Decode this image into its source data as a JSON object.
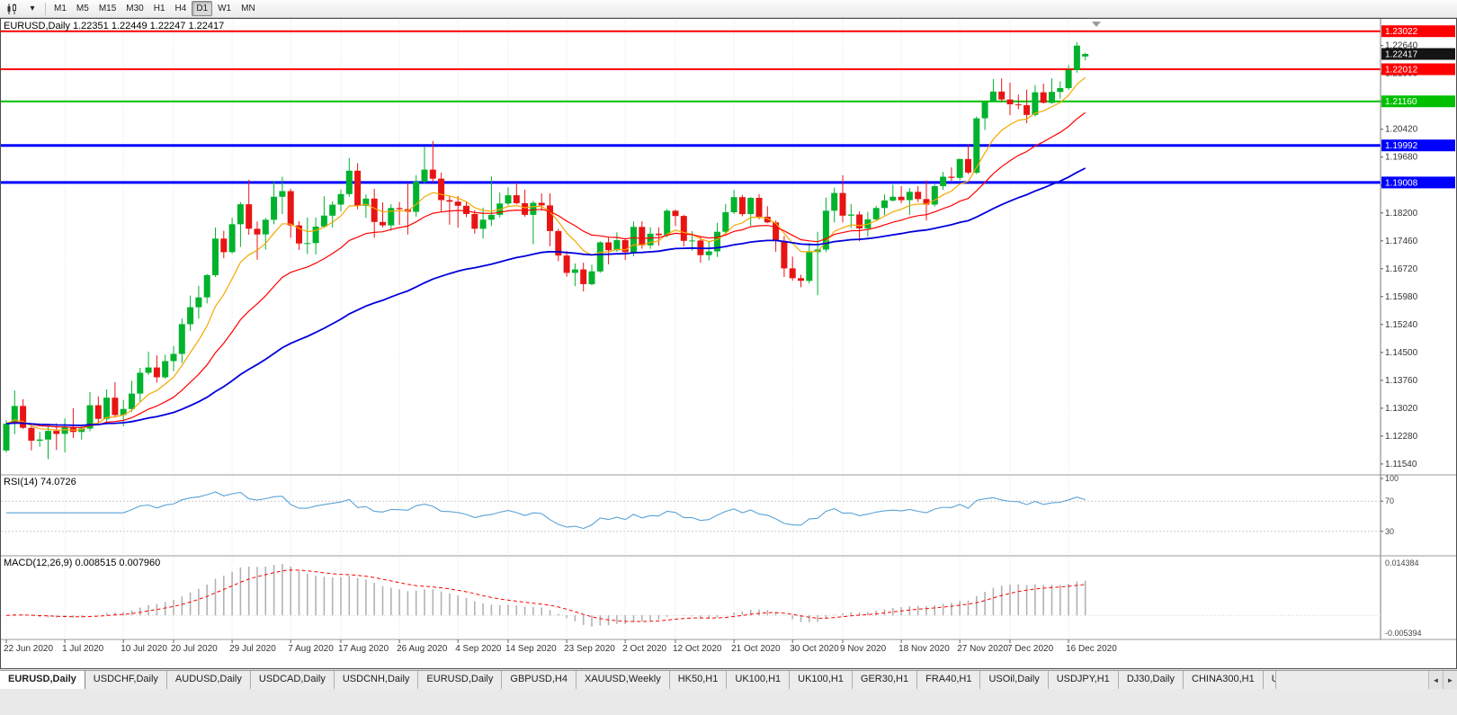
{
  "toolbar": {
    "chart_type_icon": "candlestick-chart-icon",
    "dropdown_icon": "caret-down-icon",
    "timeframes": [
      "M1",
      "M5",
      "M15",
      "M30",
      "H1",
      "H4",
      "D1",
      "W1",
      "MN"
    ],
    "active_timeframe": "D1"
  },
  "chart": {
    "title": "EURUSD,Daily 1.22351 1.22449 1.22247 1.22417",
    "symbol": "EURUSD",
    "period": "Daily"
  },
  "chart_data": {
    "type": "candlestick",
    "symbol": "EURUSD",
    "timeframe": "Daily",
    "ohlc_current": {
      "open": 1.22351,
      "high": 1.22449,
      "low": 1.22247,
      "close": 1.22417
    },
    "price_range": [
      1.113,
      1.233
    ],
    "y_axis_labels": [
      "1.22640",
      "1.21900",
      "1.21160",
      "1.20420",
      "1.19680",
      "1.18940",
      "1.18200",
      "1.17460",
      "1.16720",
      "1.15980",
      "1.15240",
      "1.14500",
      "1.13760",
      "1.13020",
      "1.12280",
      "1.11540"
    ],
    "x_tick_labels": [
      "22 Jun 2020",
      "1 Jul 2020",
      "10 Jul 2020",
      "20 Jul 2020",
      "29 Jul 2020",
      "7 Aug 2020",
      "17 Aug 2020",
      "26 Aug 2020",
      "4 Sep 2020",
      "14 Sep 2020",
      "23 Sep 2020",
      "2 Oct 2020",
      "12 Oct 2020",
      "21 Oct 2020",
      "30 Oct 2020",
      "9 Nov 2020",
      "18 Nov 2020",
      "27 Nov 2020",
      "7 Dec 2020",
      "16 Dec 2020"
    ],
    "x_tick_indices": [
      0,
      7,
      14,
      20,
      27,
      34,
      40,
      47,
      54,
      60,
      67,
      74,
      80,
      87,
      94,
      100,
      107,
      114,
      120,
      127
    ],
    "colors": {
      "background": "#ffffff",
      "grid": "#e3e3e3",
      "bull": "#00b22d",
      "bear": "#e81414"
    },
    "candles": [
      [
        1.119,
        1.127,
        1.1185,
        1.1261
      ],
      [
        1.1261,
        1.1349,
        1.1233,
        1.1308
      ],
      [
        1.1308,
        1.1326,
        1.1247,
        1.125
      ],
      [
        1.125,
        1.1261,
        1.119,
        1.1216
      ],
      [
        1.1216,
        1.1239,
        1.12,
        1.1219
      ],
      [
        1.1219,
        1.1261,
        1.1167,
        1.1242
      ],
      [
        1.1242,
        1.1262,
        1.1191,
        1.1234
      ],
      [
        1.1234,
        1.1275,
        1.1185,
        1.1252
      ],
      [
        1.1252,
        1.1302,
        1.1223,
        1.1239
      ],
      [
        1.1239,
        1.1254,
        1.1219,
        1.1248
      ],
      [
        1.1248,
        1.1345,
        1.1241,
        1.131
      ],
      [
        1.131,
        1.1333,
        1.1259,
        1.1274
      ],
      [
        1.1274,
        1.1352,
        1.1266,
        1.133
      ],
      [
        1.133,
        1.1371,
        1.1277,
        1.1284
      ],
      [
        1.1284,
        1.1324,
        1.1254,
        1.13
      ],
      [
        1.13,
        1.1375,
        1.1292,
        1.1341
      ],
      [
        1.1341,
        1.1409,
        1.132,
        1.1396
      ],
      [
        1.1396,
        1.1452,
        1.139,
        1.141
      ],
      [
        1.141,
        1.1442,
        1.137,
        1.1384
      ],
      [
        1.1384,
        1.1444,
        1.138,
        1.1427
      ],
      [
        1.1427,
        1.1467,
        1.14,
        1.1446
      ],
      [
        1.1446,
        1.154,
        1.1422,
        1.1525
      ],
      [
        1.1525,
        1.1601,
        1.1507,
        1.157
      ],
      [
        1.157,
        1.1627,
        1.154,
        1.1596
      ],
      [
        1.1596,
        1.1658,
        1.158,
        1.1655
      ],
      [
        1.1655,
        1.1781,
        1.165,
        1.1752
      ],
      [
        1.1752,
        1.1773,
        1.17,
        1.1716
      ],
      [
        1.1716,
        1.1807,
        1.1712,
        1.179
      ],
      [
        1.179,
        1.1849,
        1.173,
        1.1843
      ],
      [
        1.1843,
        1.1908,
        1.1762,
        1.1778
      ],
      [
        1.1778,
        1.1797,
        1.1696,
        1.1763
      ],
      [
        1.1763,
        1.1807,
        1.1723,
        1.1802
      ],
      [
        1.1802,
        1.1905,
        1.179,
        1.1863
      ],
      [
        1.1863,
        1.1916,
        1.1817,
        1.1878
      ],
      [
        1.1878,
        1.1884,
        1.1754,
        1.1787
      ],
      [
        1.1787,
        1.1798,
        1.1722,
        1.1739
      ],
      [
        1.1739,
        1.1808,
        1.1711,
        1.174
      ],
      [
        1.174,
        1.1808,
        1.171,
        1.1784
      ],
      [
        1.1784,
        1.1864,
        1.178,
        1.1813
      ],
      [
        1.1813,
        1.1851,
        1.1781,
        1.1842
      ],
      [
        1.1842,
        1.1882,
        1.1824,
        1.187
      ],
      [
        1.187,
        1.1966,
        1.1863,
        1.1932
      ],
      [
        1.1932,
        1.1952,
        1.183,
        1.1839
      ],
      [
        1.1839,
        1.1869,
        1.1807,
        1.1858
      ],
      [
        1.1858,
        1.1884,
        1.1754,
        1.1796
      ],
      [
        1.1796,
        1.1848,
        1.1782,
        1.1787
      ],
      [
        1.1787,
        1.1843,
        1.1773,
        1.1833
      ],
      [
        1.1833,
        1.1849,
        1.1788,
        1.183
      ],
      [
        1.183,
        1.1899,
        1.1763,
        1.1823
      ],
      [
        1.1823,
        1.192,
        1.181,
        1.1903
      ],
      [
        1.1903,
        1.1997,
        1.1898,
        1.1935
      ],
      [
        1.1935,
        1.2011,
        1.19,
        1.1911
      ],
      [
        1.1911,
        1.1927,
        1.1822,
        1.1854
      ],
      [
        1.1854,
        1.1865,
        1.1789,
        1.185
      ],
      [
        1.185,
        1.1865,
        1.1781,
        1.1839
      ],
      [
        1.1839,
        1.1849,
        1.1809,
        1.1817
      ],
      [
        1.1817,
        1.1827,
        1.1765,
        1.1778
      ],
      [
        1.1778,
        1.1834,
        1.1752,
        1.1802
      ],
      [
        1.1802,
        1.1917,
        1.1785,
        1.1815
      ],
      [
        1.1815,
        1.1874,
        1.1808,
        1.1845
      ],
      [
        1.1845,
        1.1888,
        1.184,
        1.1867
      ],
      [
        1.1867,
        1.19,
        1.1843,
        1.1846
      ],
      [
        1.1846,
        1.1882,
        1.181,
        1.1815
      ],
      [
        1.1815,
        1.1852,
        1.1737,
        1.1847
      ],
      [
        1.1847,
        1.1872,
        1.1826,
        1.184
      ],
      [
        1.184,
        1.1872,
        1.1732,
        1.1772
      ],
      [
        1.1772,
        1.1778,
        1.1692,
        1.1707
      ],
      [
        1.1707,
        1.1719,
        1.1651,
        1.1661
      ],
      [
        1.1661,
        1.1686,
        1.1626,
        1.167
      ],
      [
        1.167,
        1.1688,
        1.1612,
        1.1631
      ],
      [
        1.1631,
        1.1683,
        1.1628,
        1.1665
      ],
      [
        1.1665,
        1.1745,
        1.1661,
        1.1742
      ],
      [
        1.1742,
        1.1755,
        1.1684,
        1.1721
      ],
      [
        1.1721,
        1.1769,
        1.1717,
        1.1748
      ],
      [
        1.1748,
        1.175,
        1.1695,
        1.1716
      ],
      [
        1.1716,
        1.1797,
        1.1705,
        1.1783
      ],
      [
        1.1783,
        1.1798,
        1.1725,
        1.1734
      ],
      [
        1.1734,
        1.1782,
        1.1725,
        1.1765
      ],
      [
        1.1765,
        1.1782,
        1.1733,
        1.1761
      ],
      [
        1.1761,
        1.1831,
        1.1755,
        1.1826
      ],
      [
        1.1826,
        1.1829,
        1.1785,
        1.1812
      ],
      [
        1.1812,
        1.1815,
        1.1731,
        1.1746
      ],
      [
        1.1746,
        1.1772,
        1.172,
        1.1747
      ],
      [
        1.1747,
        1.1758,
        1.1688,
        1.1708
      ],
      [
        1.1708,
        1.1746,
        1.1694,
        1.1718
      ],
      [
        1.1718,
        1.1794,
        1.1703,
        1.177
      ],
      [
        1.177,
        1.1844,
        1.176,
        1.1822
      ],
      [
        1.1822,
        1.1881,
        1.1817,
        1.1862
      ],
      [
        1.1862,
        1.1868,
        1.1811,
        1.1817
      ],
      [
        1.1817,
        1.1863,
        1.1786,
        1.186
      ],
      [
        1.186,
        1.187,
        1.1803,
        1.181
      ],
      [
        1.181,
        1.1838,
        1.1793,
        1.1795
      ],
      [
        1.1795,
        1.18,
        1.1717,
        1.1746
      ],
      [
        1.1746,
        1.1759,
        1.165,
        1.1673
      ],
      [
        1.1673,
        1.1704,
        1.164,
        1.1647
      ],
      [
        1.1647,
        1.1656,
        1.1623,
        1.164
      ],
      [
        1.164,
        1.174,
        1.1633,
        1.1716
      ],
      [
        1.1716,
        1.177,
        1.1602,
        1.1723
      ],
      [
        1.1723,
        1.1861,
        1.1716,
        1.1826
      ],
      [
        1.1826,
        1.1887,
        1.1795,
        1.1873
      ],
      [
        1.1873,
        1.192,
        1.1795,
        1.1813
      ],
      [
        1.1813,
        1.1843,
        1.178,
        1.1816
      ],
      [
        1.1816,
        1.1824,
        1.1745,
        1.1779
      ],
      [
        1.1779,
        1.1823,
        1.1757,
        1.1803
      ],
      [
        1.1803,
        1.1839,
        1.1799,
        1.1833
      ],
      [
        1.1833,
        1.1869,
        1.1814,
        1.1853
      ],
      [
        1.1853,
        1.1895,
        1.185,
        1.1863
      ],
      [
        1.1863,
        1.1891,
        1.1846,
        1.1854
      ],
      [
        1.1854,
        1.1886,
        1.1815,
        1.1876
      ],
      [
        1.1876,
        1.1891,
        1.1849,
        1.1857
      ],
      [
        1.1857,
        1.1906,
        1.18,
        1.1842
      ],
      [
        1.1842,
        1.1895,
        1.1837,
        1.1891
      ],
      [
        1.1891,
        1.1929,
        1.1881,
        1.1916
      ],
      [
        1.1916,
        1.1941,
        1.1905,
        1.1913
      ],
      [
        1.1913,
        1.1964,
        1.1907,
        1.1963
      ],
      [
        1.1963,
        1.2003,
        1.1923,
        1.1927
      ],
      [
        1.1927,
        1.2076,
        1.1923,
        1.2071
      ],
      [
        1.2071,
        1.2118,
        1.204,
        1.2115
      ],
      [
        1.2115,
        1.2175,
        1.2114,
        1.2142
      ],
      [
        1.2142,
        1.2177,
        1.2115,
        1.2121
      ],
      [
        1.2121,
        1.2166,
        1.2079,
        1.2108
      ],
      [
        1.2108,
        1.2134,
        1.2095,
        1.2106
      ],
      [
        1.2106,
        1.2147,
        1.2058,
        1.208
      ],
      [
        1.208,
        1.2159,
        1.2076,
        1.214
      ],
      [
        1.214,
        1.2163,
        1.211,
        1.2112
      ],
      [
        1.2112,
        1.2177,
        1.211,
        1.2141
      ],
      [
        1.2141,
        1.2169,
        1.2123,
        1.2151
      ],
      [
        1.2151,
        1.2212,
        1.2146,
        1.2199
      ],
      [
        1.2199,
        1.2273,
        1.2192,
        1.2264
      ],
      [
        1.22351,
        1.22449,
        1.22247,
        1.22417
      ]
    ],
    "moving_averages": [
      {
        "name": "ma-fast-orange",
        "period": 8,
        "color": "#f5a800",
        "width": 1.2
      },
      {
        "name": "ma-mid-red",
        "period": 20,
        "color": "#ff0000",
        "width": 1.2
      },
      {
        "name": "ma-slow-blue",
        "period": 55,
        "color": "#0000dd",
        "width": 1.8
      }
    ],
    "hlines": [
      {
        "price": 1.23022,
        "label": "1.23022",
        "color": "#ff0000",
        "width": 2
      },
      {
        "price": 1.22012,
        "label": "1.22012",
        "color": "#ff0000",
        "width": 2
      },
      {
        "price": 1.2116,
        "label": "1.21160",
        "color": "#00c000",
        "width": 2
      },
      {
        "price": 1.19992,
        "label": "1.19992",
        "color": "#0000ff",
        "width": 3
      },
      {
        "price": 1.19008,
        "label": "1.19008",
        "color": "#0000ff",
        "width": 3
      }
    ],
    "current_price": {
      "value": 1.22417,
      "label": "1.22417",
      "box_color": "#141414"
    },
    "rsi": {
      "label": "RSI(14) 74.0726",
      "period": 14,
      "value": 74.0726,
      "levels": [
        100,
        70,
        30
      ],
      "color": "#5aa2d6"
    },
    "macd": {
      "label": "MACD(12,26,9) 0.008515 0.007960",
      "fast": 12,
      "slow": 26,
      "signal_period": 9,
      "main_value": 0.008515,
      "signal_value": 0.00796,
      "scale_max": 0.014384,
      "scale_min": -0.005394,
      "axis_labels": [
        "0.014384",
        "-0.005394"
      ],
      "histogram_color": "#b2b2b2",
      "signal_color": "#ff0000"
    }
  },
  "tabs": {
    "items": [
      {
        "label": "EURUSD,Daily",
        "active": true
      },
      {
        "label": "USDCHF,Daily"
      },
      {
        "label": "AUDUSD,Daily"
      },
      {
        "label": "USDCAD,Daily"
      },
      {
        "label": "USDCNH,Daily"
      },
      {
        "label": "EURUSD,Daily"
      },
      {
        "label": "GBPUSD,H4"
      },
      {
        "label": "XAUUSD,Weekly"
      },
      {
        "label": "HK50,H1"
      },
      {
        "label": "UK100,H1"
      },
      {
        "label": "UK100,H1"
      },
      {
        "label": "GER30,H1"
      },
      {
        "label": "FRA40,H1"
      },
      {
        "label": "USOil,Daily"
      },
      {
        "label": "USDJPY,H1"
      },
      {
        "label": "DJ30,Daily"
      },
      {
        "label": "CHINA300,H1"
      },
      {
        "label": "U",
        "clipped": true
      }
    ],
    "scroll_left": "◄",
    "scroll_right": "►"
  }
}
